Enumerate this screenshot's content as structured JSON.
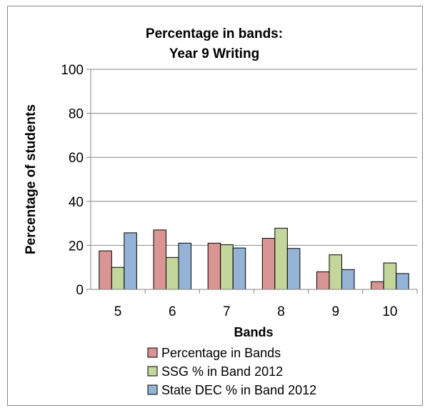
{
  "chart_data": {
    "type": "bar",
    "title": [
      "Percentage in bands:",
      "Year 9 Writing"
    ],
    "xlabel": "Bands",
    "ylabel": "Percentage of students",
    "categories": [
      "5",
      "6",
      "7",
      "8",
      "9",
      "10"
    ],
    "ylim": [
      0,
      100
    ],
    "yticks": [
      0,
      20,
      40,
      60,
      80,
      100
    ],
    "grid": true,
    "legend_position": "bottom",
    "series": [
      {
        "name": "Percentage in Bands",
        "color": "#d99594",
        "values": [
          17.5,
          27,
          21,
          23.2,
          8,
          3.5
        ]
      },
      {
        "name": "SSG % in Band 2012",
        "color": "#c3d69b",
        "values": [
          10,
          14.5,
          20.3,
          27.8,
          15.7,
          12
        ]
      },
      {
        "name": "State DEC % in Band 2012",
        "color": "#95b3d7",
        "values": [
          25.7,
          21,
          18.8,
          18.6,
          9,
          7.2
        ]
      }
    ]
  }
}
